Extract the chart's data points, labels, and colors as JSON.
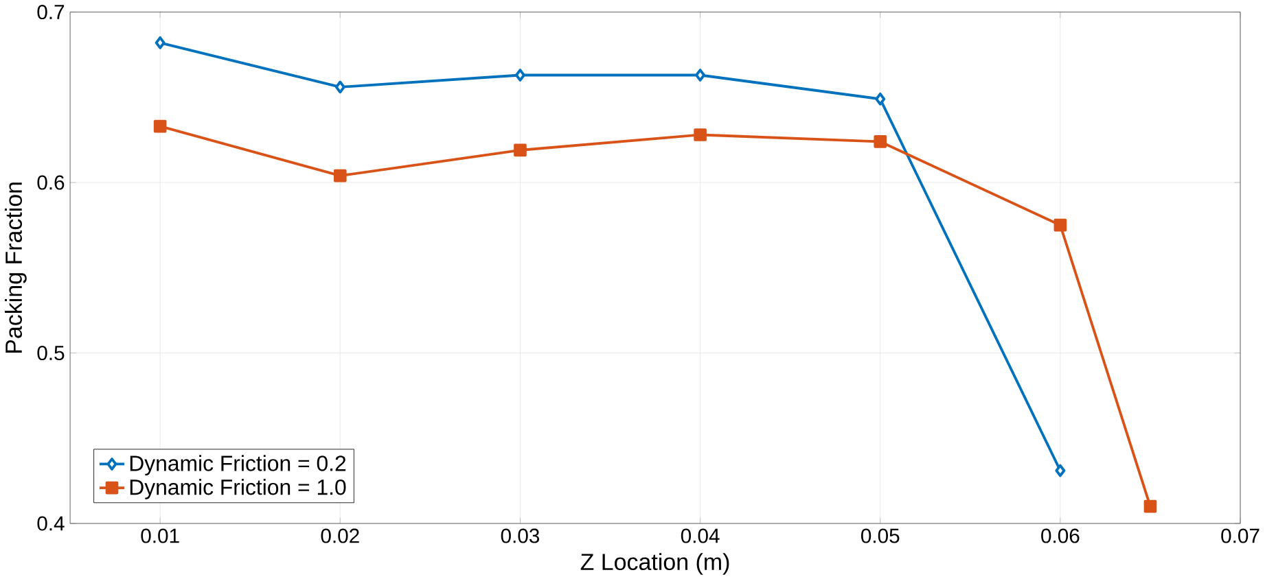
{
  "chart_data": {
    "type": "line",
    "xlabel": "Z Location (m)",
    "ylabel": "Packing Fraction",
    "xlim": [
      0.005,
      0.07
    ],
    "xticks": [
      0.01,
      0.02,
      0.03,
      0.04,
      0.05,
      0.06,
      0.07
    ],
    "ylim": [
      0.4,
      0.7
    ],
    "yticks": [
      0.4,
      0.5,
      0.6,
      0.7
    ],
    "grid": true,
    "legend": "bottom left",
    "line_style": "solid",
    "series": [
      {
        "name": "Dynamic Friction = 0.2",
        "color": "#0072bd",
        "marker": "diamond",
        "x": [
          0.01,
          0.02,
          0.03,
          0.04,
          0.05,
          0.06
        ],
        "values": [
          0.682,
          0.656,
          0.663,
          0.663,
          0.649,
          0.431
        ]
      },
      {
        "name": "Dynamic Friction = 1.0",
        "color": "#d95319",
        "marker": "square",
        "x": [
          0.01,
          0.02,
          0.03,
          0.04,
          0.05,
          0.06,
          0.065
        ],
        "values": [
          0.633,
          0.604,
          0.619,
          0.628,
          0.624,
          0.575,
          0.41
        ]
      }
    ]
  }
}
